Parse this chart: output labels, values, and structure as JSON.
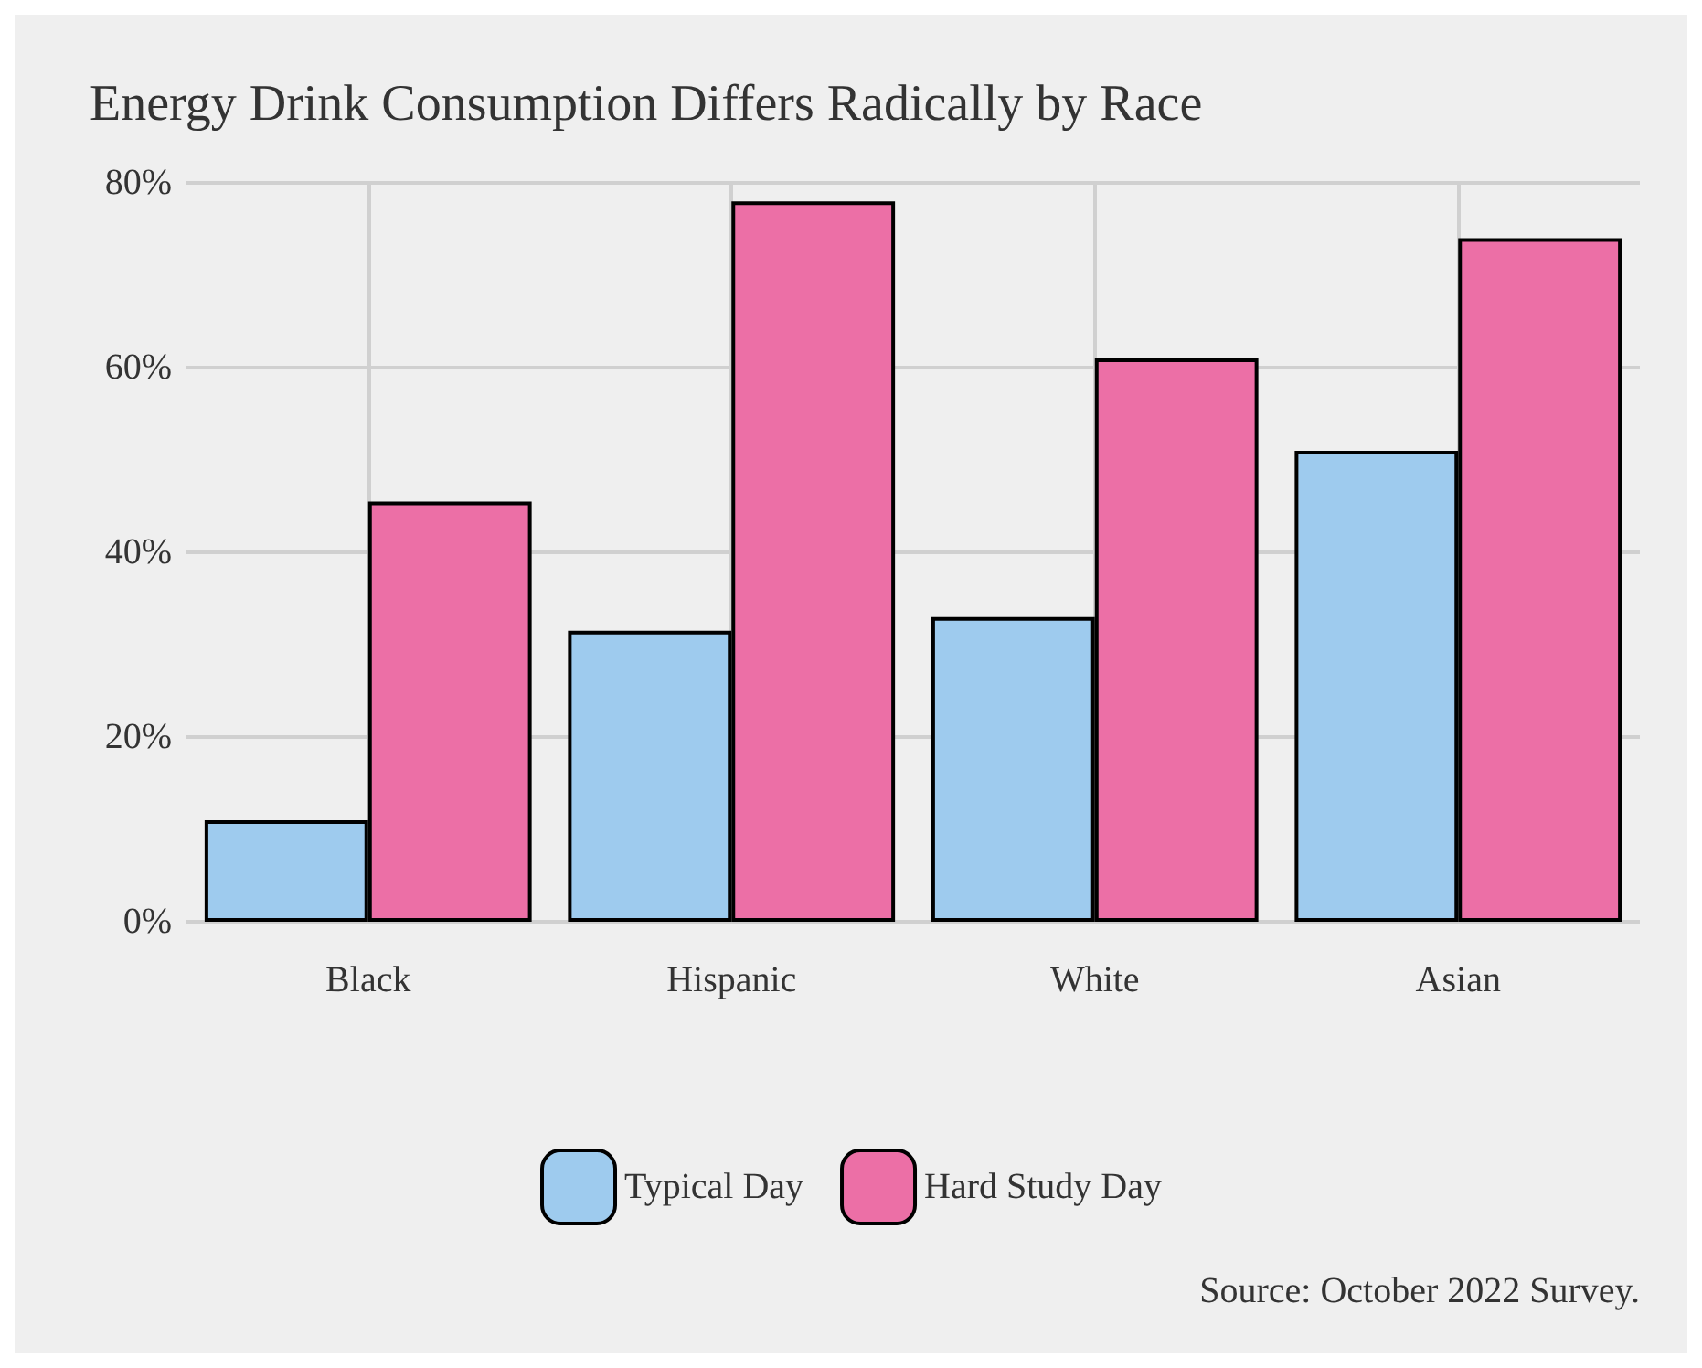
{
  "chart_data": {
    "type": "bar",
    "title": "Energy Drink Consumption Differs Radically by Race",
    "categories": [
      "Black",
      "Hispanic",
      "White",
      "Asian"
    ],
    "series": [
      {
        "name": "Typical Day",
        "color": "#9ecbee",
        "values": [
          11,
          31.5,
          33,
          51
        ]
      },
      {
        "name": "Hard Study Day",
        "color": "#ec6fa6",
        "values": [
          45.5,
          78,
          61,
          74
        ]
      }
    ],
    "ylim": [
      0,
      80
    ],
    "yticks": [
      {
        "value": 0,
        "label": "0%"
      },
      {
        "value": 20,
        "label": "20%"
      },
      {
        "value": 40,
        "label": "40%"
      },
      {
        "value": 60,
        "label": "60%"
      },
      {
        "value": 80,
        "label": "80%"
      }
    ],
    "grid": true,
    "legend": "bottom",
    "annotations": [
      "Source: October 2022 Survey."
    ]
  }
}
